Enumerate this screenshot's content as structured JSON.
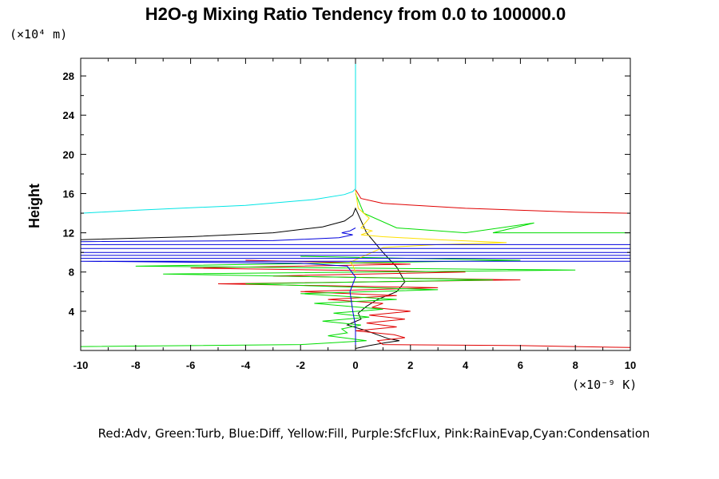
{
  "chart_data": {
    "type": "line",
    "title": "H2O-g Mixing Ratio Tendency from 0.0 to 100000.0",
    "ylabel": "Height",
    "y_scale_label": "(×10⁴ m)",
    "x_scale_label": "(×10⁻⁹ K)",
    "legend_text": "Red:Adv, Green:Turb, Blue:Diff, Yellow:Fill, Purple:SfcFlux, Pink:RainEvap,Cyan:Condensation",
    "xlim": [
      -10,
      10
    ],
    "ylim": [
      0,
      29.8
    ],
    "xticks": [
      -10,
      -8,
      -6,
      -4,
      -2,
      0,
      2,
      4,
      6,
      8,
      10
    ],
    "yticks": [
      4,
      8,
      12,
      16,
      20,
      24,
      28
    ],
    "grid": false,
    "series": [
      {
        "name": "Cyan:Condensation",
        "color": "#00e5e5",
        "x": [
          -10,
          -8,
          -4,
          -1.5,
          -0.4,
          -0.1,
          0,
          0,
          0,
          0
        ],
        "y": [
          14.0,
          14.3,
          14.8,
          15.4,
          15.9,
          16.2,
          16.5,
          20,
          25,
          29.8
        ]
      },
      {
        "name": "Black",
        "color": "#000000",
        "x": [
          -10,
          -6,
          -3,
          -1.2,
          -0.4,
          -0.1,
          0,
          0.4,
          1.0,
          1.5,
          1.8,
          1.5,
          0.8,
          0.4,
          0.1,
          0.2,
          -0.3,
          0.4,
          0.8,
          1.2,
          1.6,
          1.1,
          0.5,
          0
        ],
        "y": [
          11.3,
          11.6,
          12.0,
          12.6,
          13.2,
          13.8,
          14.5,
          12.0,
          10.0,
          8.5,
          7.0,
          6.0,
          5.2,
          4.5,
          3.8,
          3.2,
          2.6,
          2.0,
          1.6,
          1.2,
          1.0,
          0.8,
          0.5,
          0.2
        ]
      },
      {
        "name": "Red:Adv",
        "color": "#e00000",
        "x": [
          0,
          0.2,
          1,
          4,
          8,
          10,
          null,
          -4,
          2,
          -6,
          4,
          -3,
          6,
          -5,
          3,
          -2,
          1.5,
          -1,
          1,
          0.6,
          2,
          0.5,
          1.8,
          0.4,
          1.5,
          0,
          1.4,
          1.8,
          0.8,
          1,
          6,
          8,
          10
        ],
        "y": [
          16.4,
          15.5,
          15.0,
          14.5,
          14.1,
          14.0,
          null,
          9.2,
          8.8,
          8.4,
          8.0,
          7.6,
          7.2,
          6.8,
          6.4,
          6.0,
          5.6,
          5.2,
          4.8,
          4.4,
          4.0,
          3.6,
          3.2,
          2.8,
          2.4,
          2.0,
          1.6,
          1.3,
          1.0,
          0.6,
          0.5,
          0.4,
          0.3
        ]
      },
      {
        "name": "Green:Turb",
        "color": "#00dd00",
        "x": [
          0,
          0.3,
          1.5,
          4,
          6.5,
          5,
          10,
          null,
          -2,
          6,
          -8,
          8,
          -7,
          5,
          -4,
          3,
          -2,
          1.5,
          -1.5,
          1,
          -0.8,
          0.5,
          -1.2,
          0.2,
          -0.5,
          -0.3,
          -1,
          0.4,
          -0.8,
          -2,
          -10
        ],
        "y": [
          16.0,
          14.0,
          12.5,
          12.0,
          13.0,
          12.0,
          12.0,
          null,
          9.6,
          9.2,
          8.6,
          8.2,
          7.8,
          7.2,
          6.8,
          6.2,
          5.8,
          5.2,
          4.8,
          4.2,
          3.8,
          3.4,
          3.0,
          2.6,
          2.2,
          1.8,
          1.5,
          1.0,
          0.8,
          0.6,
          0.4
        ]
      },
      {
        "name": "Yellow:Fill",
        "color": "#ffe000",
        "x": [
          0,
          0.1,
          0.5,
          0.2,
          0.6,
          0.2,
          1,
          3,
          5.5,
          3,
          1,
          0.2,
          -0.2,
          -0.1,
          0
        ],
        "y": [
          16.3,
          14.5,
          13.5,
          12.5,
          12.2,
          11.8,
          11.6,
          11.3,
          11.0,
          10.8,
          10.5,
          9.5,
          9.0,
          8.7,
          8.0
        ]
      },
      {
        "name": "Blue:Diff",
        "color": "#0000dd",
        "x": [
          0,
          -0.2,
          -0.5,
          -0.1,
          -0.6,
          -3,
          -10,
          -10,
          10,
          10,
          -10,
          -10,
          10,
          10,
          -10,
          -10,
          10,
          10,
          -10,
          -2,
          -0.3,
          0,
          -0.2,
          -0.1,
          0,
          0,
          0
        ],
        "y": [
          12.5,
          12.2,
          12.0,
          11.8,
          11.5,
          11.2,
          11.1,
          10.8,
          10.8,
          10.4,
          10.4,
          10.0,
          10.0,
          9.7,
          9.7,
          9.4,
          9.4,
          9.1,
          9.1,
          8.9,
          8.6,
          7.5,
          6.0,
          4.0,
          2.5,
          1.0,
          0.2
        ]
      }
    ]
  }
}
